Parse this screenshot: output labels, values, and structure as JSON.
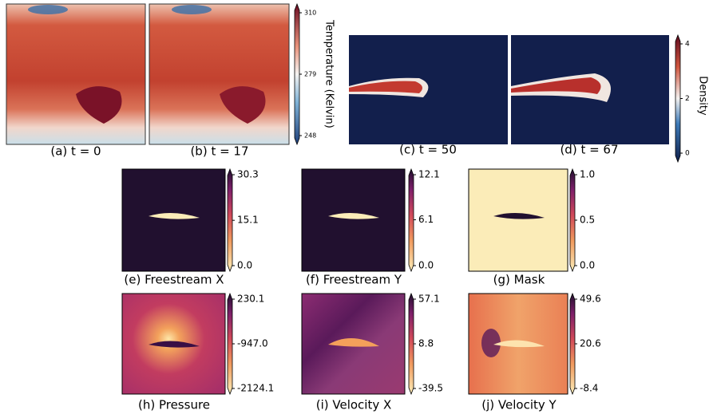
{
  "panels": [
    {
      "caption": "(a) t = 0"
    },
    {
      "caption": "(b) t = 17"
    },
    {
      "caption": "(c) t = 50"
    },
    {
      "caption": "(d) t = 67"
    },
    {
      "caption": "(e) Freestream X"
    },
    {
      "caption": "(f) Freestream Y"
    },
    {
      "caption": "(g) Mask"
    },
    {
      "caption": "(h) Pressure"
    },
    {
      "caption": "(i) Velocity X"
    },
    {
      "caption": "(j) Velocity Y"
    }
  ],
  "colorbars": [
    {
      "label": "Temperature (Kelvin)",
      "ticks": [
        248,
        279,
        310
      ]
    },
    {
      "label": "Density",
      "ticks": [
        0,
        2,
        4
      ]
    },
    {
      "ticks": [
        {
          "value": 0,
          "label": "0.0"
        },
        15.1,
        30.3
      ]
    },
    {
      "ticks": [
        {
          "value": 0,
          "label": "0.0"
        },
        6.1,
        12.1
      ]
    },
    {
      "ticks": [
        {
          "value": 0,
          "label": "0.0"
        },
        0.5,
        {
          "value": 1,
          "label": "1.0"
        }
      ]
    },
    {
      "ticks": [
        -2124.1,
        {
          "value": -947,
          "label": "-947.0"
        },
        230.1
      ]
    },
    {
      "ticks": [
        -39.5,
        8.8,
        57.1
      ]
    },
    {
      "ticks": [
        -8.4,
        20.6,
        49.6
      ]
    }
  ]
}
